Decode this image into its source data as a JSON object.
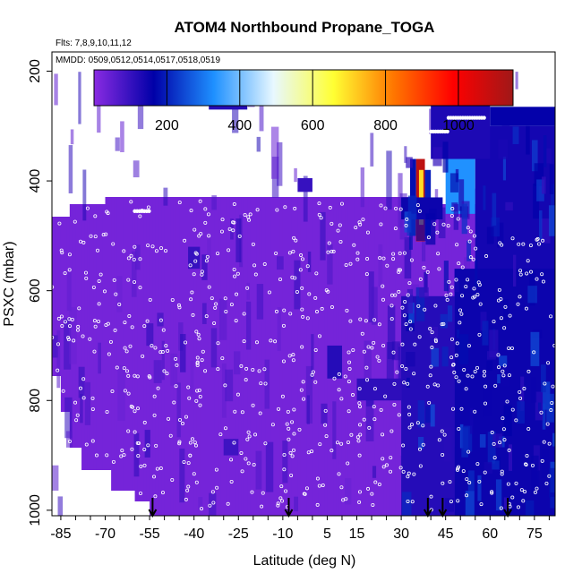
{
  "chart_data": {
    "type": "heatmap",
    "title": "ATOM4 Northbound Propane_TOGA",
    "annotations": [
      "Flts: 7,8,9,10,11,12",
      "MMDD: 0509,0512,0514,0517,0518,0519"
    ],
    "xlabel": "Latitude (deg N)",
    "ylabel": "PSXC (mbar)",
    "xlim": [
      -88,
      82
    ],
    "ylim": [
      1010,
      165
    ],
    "x_ticks": [
      -85,
      -70,
      -55,
      -40,
      -25,
      -10,
      5,
      15,
      30,
      45,
      60,
      75
    ],
    "y_ticks": [
      200,
      400,
      600,
      800,
      1000
    ],
    "y_reversed": true,
    "colorbar": {
      "range": [
        0,
        1150
      ],
      "ticks": [
        200,
        400,
        600,
        800,
        1000
      ],
      "colors": [
        "#8a2be2",
        "#0000a8",
        "#1e90ff",
        "#e8f8ff",
        "#ffff33",
        "#ff7700",
        "#ff0000",
        "#a01818"
      ],
      "placement": "top"
    },
    "background_value": 25,
    "blocks": [
      {
        "lat": [
          35,
          38
        ],
        "p": [
          360,
          510
        ],
        "value": 1100
      },
      {
        "lat": [
          36,
          37.5
        ],
        "p": [
          380,
          480
        ],
        "value": 700
      },
      {
        "lat": [
          33,
          35
        ],
        "p": [
          360,
          500
        ],
        "value": 180
      },
      {
        "lat": [
          38,
          40
        ],
        "p": [
          380,
          500
        ],
        "value": 200
      },
      {
        "lat": [
          45,
          55
        ],
        "p": [
          350,
          460
        ],
        "value": 330
      },
      {
        "lat": [
          44,
          52
        ],
        "p": [
          265,
          300
        ],
        "value": 250
      },
      {
        "lat": [
          30,
          44
        ],
        "p": [
          430,
          470
        ],
        "value": 150
      },
      {
        "lat": [
          55,
          82
        ],
        "p": [
          300,
          1010
        ],
        "value": 140
      },
      {
        "lat": [
          48,
          82
        ],
        "p": [
          560,
          1010
        ],
        "value": 150
      },
      {
        "lat": [
          30,
          48
        ],
        "p": [
          610,
          1010
        ],
        "value": 120
      },
      {
        "lat": [
          40,
          60
        ],
        "p": [
          240,
          360
        ],
        "value": 130
      },
      {
        "lat": [
          60,
          82
        ],
        "p": [
          265,
          300
        ],
        "value": 160
      },
      {
        "lat": [
          -35,
          -22
        ],
        "p": [
          230,
          270
        ],
        "value": 120
      },
      {
        "lat": [
          5,
          10
        ],
        "p": [
          700,
          760
        ],
        "value": 120
      },
      {
        "lat": [
          15,
          30
        ],
        "p": [
          760,
          800
        ],
        "value": 110
      },
      {
        "lat": [
          -5,
          0
        ],
        "p": [
          395,
          420
        ],
        "value": 100
      },
      {
        "lat": [
          -42,
          -38
        ],
        "p": [
          520,
          560
        ],
        "value": 100
      },
      {
        "lat": [
          -30,
          -25
        ],
        "p": [
          870,
          900
        ],
        "value": 90
      }
    ],
    "flight_markers_lat": [
      -54,
      -8,
      39,
      44,
      66
    ],
    "sample_dots": {
      "count": 1100,
      "lat_range": [
        -88,
        82
      ],
      "p_range": [
        200,
        1000
      ]
    },
    "grid": false,
    "legend": "none"
  }
}
